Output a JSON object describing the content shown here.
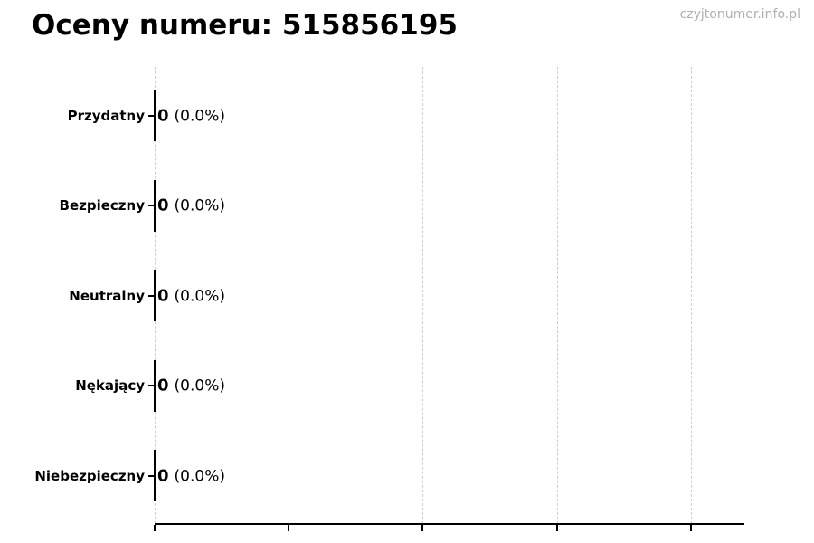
{
  "page": {
    "watermark": "czyjtonumer.info.pl"
  },
  "chart_data": {
    "type": "bar",
    "orientation": "horizontal",
    "title": "Oceny numeru: 515856195",
    "categories": [
      "Przydatny",
      "Bezpieczny",
      "Neutralny",
      "Nękający",
      "Niebezpieczny"
    ],
    "values": [
      0,
      0,
      0,
      0,
      0
    ],
    "percentages": [
      0.0,
      0.0,
      0.0,
      0.0,
      0.0
    ],
    "value_label_counts": [
      "0",
      "0",
      "0",
      "0",
      "0"
    ],
    "value_label_percents": [
      "(0.0%)",
      "(0.0%)",
      "(0.0%)",
      "(0.0%)",
      "(0.0%)"
    ],
    "xlabel": "",
    "ylabel": "",
    "x_tick_count": 5,
    "x_tick_labels": [
      "",
      "",
      "",
      "",
      ""
    ],
    "grid": true,
    "grid_style": "dashed-vertical",
    "legend": false,
    "colors": {
      "bar_edge": "#000000",
      "grid": "#cdcdcd",
      "axis": "#000000",
      "text": "#000000",
      "watermark": "#b0b0b0"
    }
  }
}
